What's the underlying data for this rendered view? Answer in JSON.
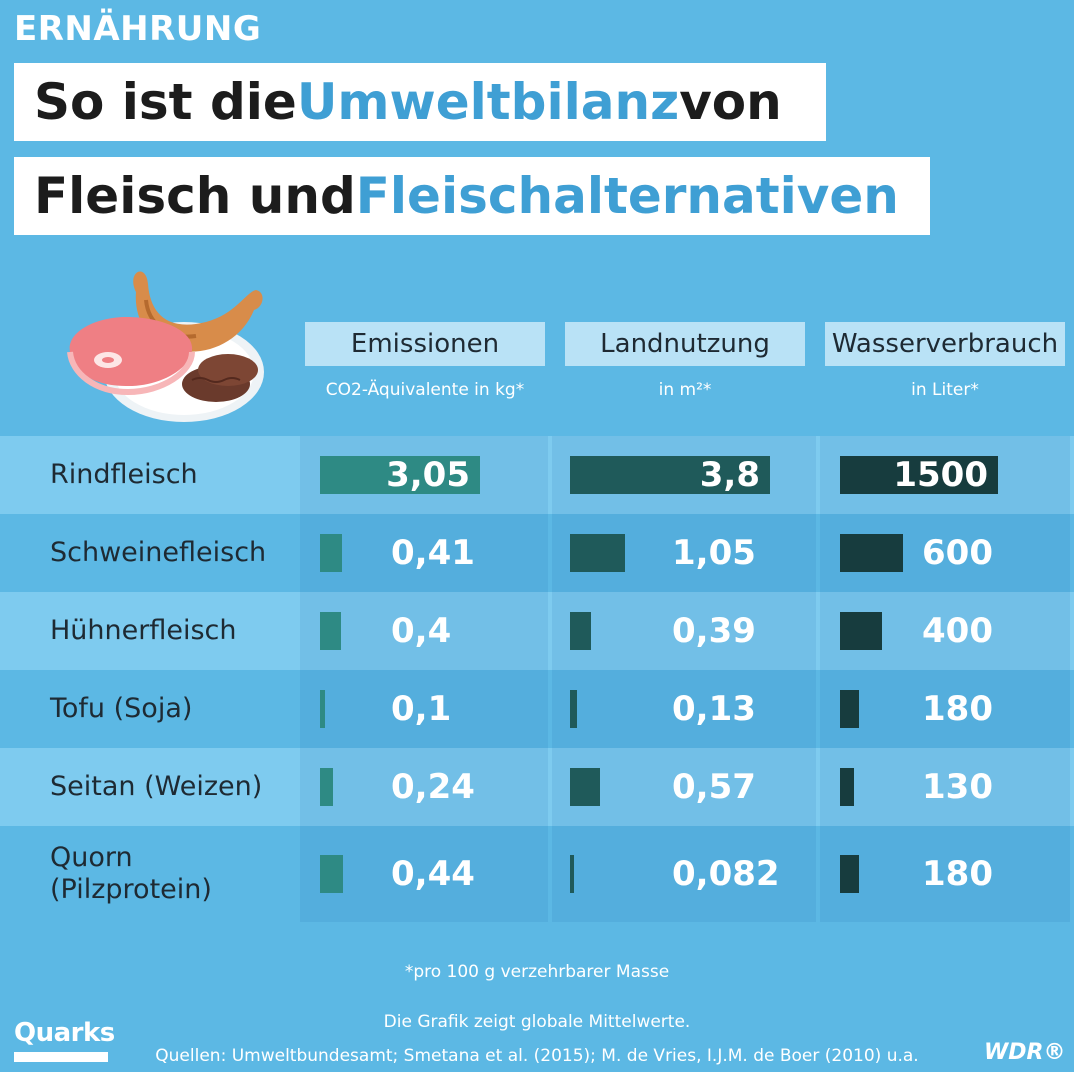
{
  "kicker": "ERNÄHRUNG",
  "title": {
    "line1_pre": "So ist die ",
    "line1_hl": "Umweltbilanz",
    "line1_post": " von",
    "line2_pre": "Fleisch und ",
    "line2_hl": "Fleischalternativen"
  },
  "illustration_icon": "meat-plate-icon",
  "colors": {
    "background": "#5cb8e4",
    "highlight_text": "#3f9fd4",
    "emissions_bar": "#2e8a84",
    "land_bar": "#1f5a5a",
    "water_bar": "#173c3e"
  },
  "chart_data": {
    "type": "table",
    "columns": [
      {
        "key": "emissionen",
        "label": "Emissionen",
        "unit": "CO2-Äquivalente in kg*"
      },
      {
        "key": "landnutzung",
        "label": "Landnutzung",
        "unit": "in m²*"
      },
      {
        "key": "wasserverbrauch",
        "label": "Wasserverbrauch",
        "unit": "in Liter*"
      }
    ],
    "rows": [
      {
        "label": "Rindfleisch",
        "values": [
          3.05,
          3.8,
          1500
        ],
        "display": [
          "3,05",
          "3,8",
          "1500"
        ]
      },
      {
        "label": "Schweinefleisch",
        "values": [
          0.41,
          1.05,
          600
        ],
        "display": [
          "0,41",
          "1,05",
          "600"
        ]
      },
      {
        "label": "Hühnerfleisch",
        "values": [
          0.4,
          0.39,
          400
        ],
        "display": [
          "0,4",
          "0,39",
          "400"
        ]
      },
      {
        "label": "Tofu (Soja)",
        "values": [
          0.1,
          0.13,
          180
        ],
        "display": [
          "0,1",
          "0,13",
          "180"
        ]
      },
      {
        "label": "Seitan (Weizen)",
        "values": [
          0.24,
          0.57,
          130
        ],
        "display": [
          "0,24",
          "0,57",
          "130"
        ]
      },
      {
        "label": "Quorn\n(Pilzprotein)",
        "values": [
          0.44,
          0.082,
          180
        ],
        "display": [
          "0,44",
          "0,082",
          "180"
        ]
      }
    ]
  },
  "footnotes": {
    "per_mass": "*pro 100 g verzehrbarer Masse",
    "global": "Die Grafik zeigt globale Mittelwerte.",
    "sources": "Quellen: Umweltbundesamt; Smetana et al. (2015); M. de Vries, I.J.M. de Boer (2010) u.a."
  },
  "logos": {
    "quarks": "Quarks",
    "wdr": "WDR®"
  }
}
